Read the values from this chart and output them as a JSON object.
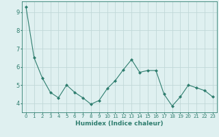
{
  "x": [
    0,
    1,
    2,
    3,
    4,
    5,
    6,
    7,
    8,
    9,
    10,
    11,
    12,
    13,
    14,
    15,
    16,
    17,
    18,
    19,
    20,
    21,
    22,
    23
  ],
  "y": [
    9.3,
    6.5,
    5.4,
    4.6,
    4.3,
    5.0,
    4.6,
    4.3,
    3.95,
    4.15,
    4.8,
    5.25,
    5.85,
    6.4,
    5.7,
    5.8,
    5.8,
    4.5,
    3.85,
    4.35,
    5.0,
    4.85,
    4.7,
    4.35
  ],
  "line_color": "#2e7d6e",
  "marker": "D",
  "marker_size": 2.0,
  "bg_color": "#dff0f0",
  "grid_color": "#c0d8d8",
  "xlabel": "Humidex (Indice chaleur)",
  "ylim": [
    3.5,
    9.6
  ],
  "xlim": [
    -0.5,
    23.5
  ],
  "yticks": [
    4,
    5,
    6,
    7,
    8,
    9
  ],
  "xticks": [
    0,
    1,
    2,
    3,
    4,
    5,
    6,
    7,
    8,
    9,
    10,
    11,
    12,
    13,
    14,
    15,
    16,
    17,
    18,
    19,
    20,
    21,
    22,
    23
  ],
  "xtick_labels": [
    "0",
    "1",
    "2",
    "3",
    "4",
    "5",
    "6",
    "7",
    "8",
    "9",
    "10",
    "11",
    "12",
    "13",
    "14",
    "15",
    "16",
    "17",
    "18",
    "19",
    "20",
    "21",
    "22",
    "23"
  ],
  "xlabel_color": "#2e7d6e",
  "tick_color": "#2e7d6e",
  "axis_color": "#2e7d6e",
  "xlabel_fontsize": 6.5,
  "ytick_fontsize": 6.0,
  "xtick_fontsize": 5.0
}
